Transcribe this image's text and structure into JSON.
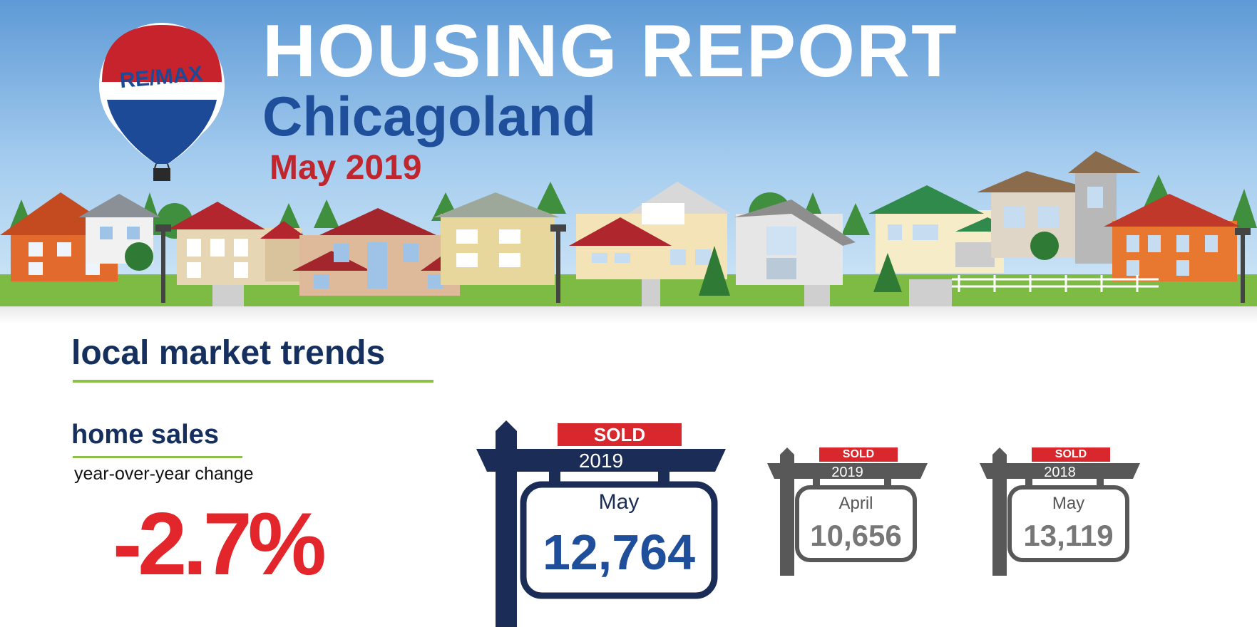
{
  "header": {
    "title": "HOUSING REPORT",
    "region": "Chicagoland",
    "period": "May 2019",
    "logo_text": "RE/MAX"
  },
  "section": {
    "title": "local market trends"
  },
  "home_sales": {
    "title": "home sales",
    "change_label": "year-over-year change",
    "change_value": "-2.7%"
  },
  "signs": [
    {
      "badge": "SOLD",
      "year": "2019",
      "month": "May",
      "value": "12,764",
      "highlight": true
    },
    {
      "badge": "SOLD",
      "year": "2019",
      "month": "April",
      "value": "10,656",
      "highlight": false
    },
    {
      "badge": "SOLD",
      "year": "2018",
      "month": "May",
      "value": "13,119",
      "highlight": false
    }
  ],
  "colors": {
    "sky_top": "#5e9ad6",
    "brand_blue": "#1f4e9a",
    "brand_red": "#c0262d",
    "navy": "#1b2d56",
    "accent_green": "#8dc04b",
    "negative_red": "#e3262b",
    "gray_sign": "#585858"
  }
}
